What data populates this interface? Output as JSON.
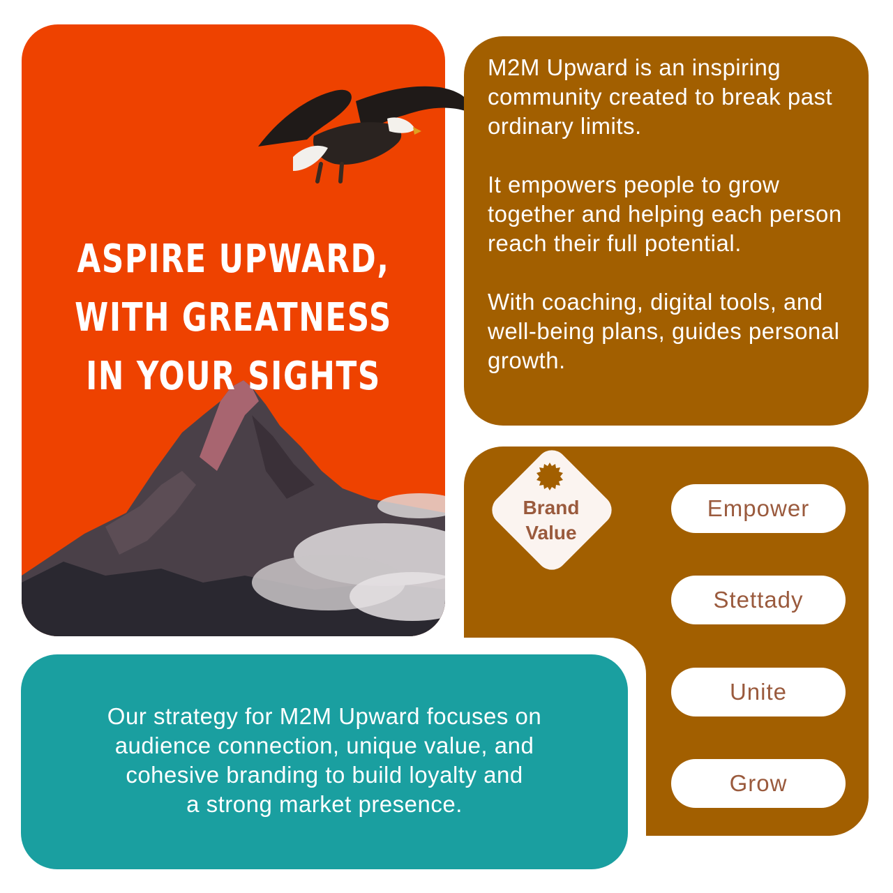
{
  "hero": {
    "headline_lines": [
      "ASPIRE UPWARD,",
      "WITH GREATNESS",
      "IN YOUR SIGHTS"
    ],
    "background_color": "#ee4200",
    "illustrations": [
      "eagle-icon",
      "mountain-peak",
      "cloud"
    ]
  },
  "about": {
    "background_color": "#a25f00",
    "paragraphs": [
      "M2M Upward is an inspiring community created to break past ordinary limits.",
      "It empowers people to grow together and  helping each person reach their full potential.",
      "With coaching, digital tools, and well-being plans, guides  personal growth."
    ]
  },
  "brand_values": {
    "badge_lines": [
      "Brand",
      "Value"
    ],
    "items": [
      "Empower",
      "Stettady",
      "Unite",
      "Grow"
    ]
  },
  "strategy": {
    "background_color": "#1a9fa0",
    "lines": [
      "Our strategy for M2M Upward focuses on",
      "audience connection, unique value, and",
      "cohesive branding to build loyalty and",
      "a strong market presence."
    ]
  }
}
